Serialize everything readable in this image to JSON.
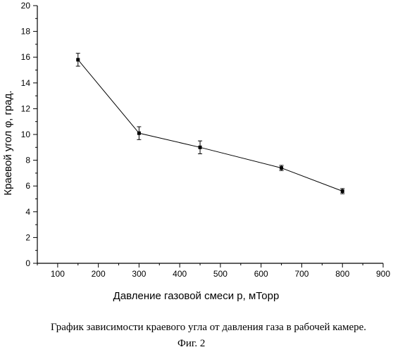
{
  "chart_data": {
    "type": "line",
    "title": "",
    "xlabel": "Давление газовой смеси p, мТорр",
    "ylabel": "Краевой угол φ, град.",
    "xlim": [
      50,
      900
    ],
    "ylim": [
      0,
      20
    ],
    "xticks": [
      "100",
      "200",
      "300",
      "400",
      "500",
      "600",
      "700",
      "800",
      "900"
    ],
    "yticks": [
      "0",
      "2",
      "4",
      "6",
      "8",
      "10",
      "12",
      "14",
      "16",
      "18",
      "20"
    ],
    "grid": false,
    "legend": "none",
    "series": [
      {
        "x": [
          150,
          300,
          450,
          650,
          800
        ],
        "y": [
          15.8,
          10.1,
          9.0,
          7.4,
          5.6
        ],
        "error": [
          0.5,
          0.5,
          0.5,
          0.2,
          0.2
        ],
        "marker": "square",
        "color": "#000000"
      }
    ]
  },
  "caption": {
    "main": "График зависимости краевого угла от давления газа в рабочей камере.",
    "figure": "Фиг. 2"
  }
}
